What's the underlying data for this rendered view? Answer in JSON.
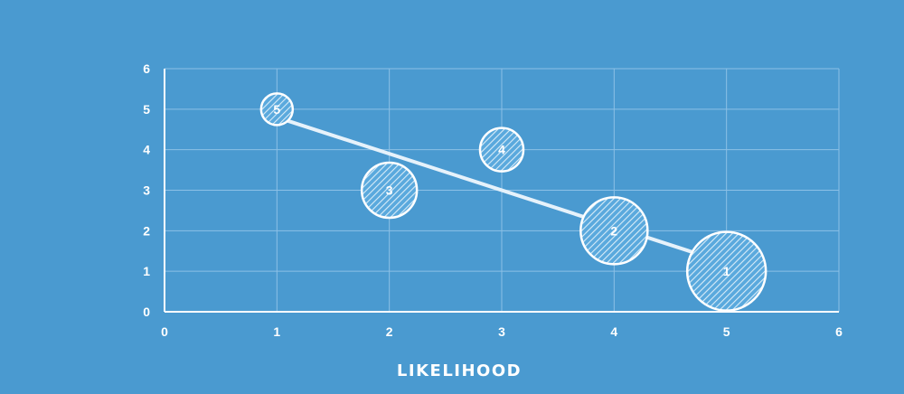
{
  "chart_data": {
    "type": "scatter",
    "subtype": "bubble",
    "title": "",
    "xlabel": "LIKELIHOOD",
    "ylabel": "",
    "xlim": [
      0,
      6
    ],
    "ylim": [
      0,
      6
    ],
    "x_ticks": [
      0,
      1,
      2,
      3,
      4,
      5,
      6
    ],
    "y_ticks": [
      0,
      1,
      2,
      3,
      4,
      5,
      6
    ],
    "grid": true,
    "points": [
      {
        "label": "5",
        "x": 1,
        "y": 5,
        "size": 1
      },
      {
        "label": "3",
        "x": 2,
        "y": 3,
        "size": 3
      },
      {
        "label": "4",
        "x": 3,
        "y": 4,
        "size": 2
      },
      {
        "label": "2",
        "x": 4,
        "y": 2,
        "size": 4
      },
      {
        "label": "1",
        "x": 5,
        "y": 1,
        "size": 5
      }
    ],
    "trendline": {
      "x": [
        1,
        5
      ],
      "y": [
        4.8,
        1.2
      ]
    },
    "colors": {
      "background": "#4a9ad0",
      "grid": "#8cc0e6",
      "text": "#ffffff",
      "bubble_fill": "#5aa9dd",
      "bubble_stroke": "#ffffff",
      "hatch": "#d8ecf8",
      "trendline": "#e6f2fb"
    }
  }
}
